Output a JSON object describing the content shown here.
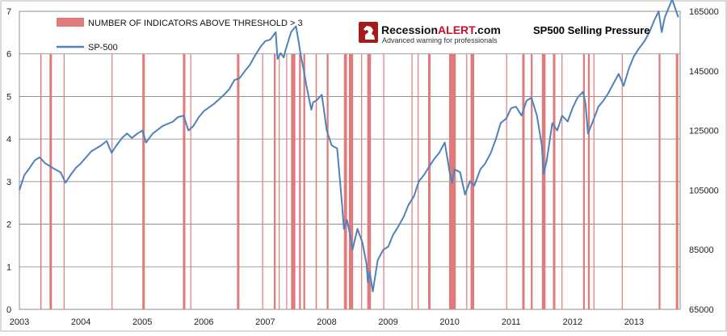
{
  "chart_data": {
    "type": "bar+line",
    "title": "SP500 Selling Pressure",
    "logo": {
      "name_prefix": "Recession",
      "name_accent": "ALERT",
      "name_suffix": ".com",
      "tagline": "Advanced warning for professionals"
    },
    "legend": [
      {
        "name": "NUMBER OF INDICATORS ABOVE THRESHOLD > 3",
        "kind": "bar",
        "color": "#e07b7b"
      },
      {
        "name": "SP-500",
        "kind": "line",
        "color": "#4f81bd"
      }
    ],
    "x_axis": {
      "ticks": [
        "2003",
        "2004",
        "2005",
        "2006",
        "2007",
        "2008",
        "2009",
        "2010",
        "2011",
        "2012",
        "2013"
      ],
      "range": [
        2003.0,
        2013.75
      ]
    },
    "y_left": {
      "ticks": [
        "0",
        "1",
        "2",
        "3",
        "4",
        "5",
        "6",
        "7"
      ],
      "range": [
        0,
        7
      ]
    },
    "y_right": {
      "ticks": [
        "65000",
        "85000",
        "105000",
        "125000",
        "145000",
        "165000"
      ],
      "range": [
        65000,
        165000
      ]
    },
    "grid": true,
    "bar_series": {
      "name": "NUMBER OF INDICATORS ABOVE THRESHOLD > 3",
      "color": "#e07b7b",
      "bars": [
        {
          "start": 2003.34,
          "end": 2003.36,
          "value": 6
        },
        {
          "start": 2003.49,
          "end": 2003.53,
          "value": 6
        },
        {
          "start": 2003.72,
          "end": 2003.73,
          "value": 6
        },
        {
          "start": 2004.5,
          "end": 2004.51,
          "value": 6
        },
        {
          "start": 2005.0,
          "end": 2005.04,
          "value": 6
        },
        {
          "start": 2005.66,
          "end": 2005.7,
          "value": 6
        },
        {
          "start": 2005.78,
          "end": 2005.79,
          "value": 6
        },
        {
          "start": 2006.54,
          "end": 2006.58,
          "value": 6
        },
        {
          "start": 2006.95,
          "end": 2006.96,
          "value": 6
        },
        {
          "start": 2007.14,
          "end": 2007.17,
          "value": 6
        },
        {
          "start": 2007.22,
          "end": 2007.23,
          "value": 6
        },
        {
          "start": 2007.34,
          "end": 2007.35,
          "value": 6
        },
        {
          "start": 2007.42,
          "end": 2007.49,
          "value": 6
        },
        {
          "start": 2007.55,
          "end": 2007.58,
          "value": 6
        },
        {
          "start": 2007.62,
          "end": 2007.65,
          "value": 6
        },
        {
          "start": 2007.82,
          "end": 2007.84,
          "value": 6
        },
        {
          "start": 2008.0,
          "end": 2008.03,
          "value": 6
        },
        {
          "start": 2008.28,
          "end": 2008.33,
          "value": 6
        },
        {
          "start": 2008.36,
          "end": 2008.43,
          "value": 6
        },
        {
          "start": 2008.56,
          "end": 2008.57,
          "value": 6
        },
        {
          "start": 2008.66,
          "end": 2008.72,
          "value": 6
        },
        {
          "start": 2008.92,
          "end": 2008.93,
          "value": 6
        },
        {
          "start": 2009.38,
          "end": 2009.39,
          "value": 6
        },
        {
          "start": 2009.48,
          "end": 2009.49,
          "value": 6
        },
        {
          "start": 2009.65,
          "end": 2009.69,
          "value": 6
        },
        {
          "start": 2009.99,
          "end": 2010.1,
          "value": 6
        },
        {
          "start": 2010.27,
          "end": 2010.28,
          "value": 6
        },
        {
          "start": 2010.34,
          "end": 2010.4,
          "value": 6
        },
        {
          "start": 2010.92,
          "end": 2010.93,
          "value": 6
        },
        {
          "start": 2011.18,
          "end": 2011.22,
          "value": 6
        },
        {
          "start": 2011.32,
          "end": 2011.35,
          "value": 6
        },
        {
          "start": 2011.5,
          "end": 2011.56,
          "value": 6
        },
        {
          "start": 2011.68,
          "end": 2011.72,
          "value": 6
        },
        {
          "start": 2011.82,
          "end": 2011.83,
          "value": 6
        },
        {
          "start": 2012.17,
          "end": 2012.2,
          "value": 6
        },
        {
          "start": 2012.25,
          "end": 2012.28,
          "value": 6
        },
        {
          "start": 2012.34,
          "end": 2012.35,
          "value": 6
        },
        {
          "start": 2012.8,
          "end": 2012.81,
          "value": 6
        },
        {
          "start": 2013.4,
          "end": 2013.43,
          "value": 6
        },
        {
          "start": 2013.68,
          "end": 2013.72,
          "value": 6
        }
      ]
    },
    "line_series": {
      "name": "SP-500",
      "color": "#4f81bd",
      "points": [
        [
          2003.0,
          105000
        ],
        [
          2003.08,
          110000
        ],
        [
          2003.17,
          112500
        ],
        [
          2003.25,
          115000
        ],
        [
          2003.33,
          116000
        ],
        [
          2003.42,
          114000
        ],
        [
          2003.5,
          113000
        ],
        [
          2003.58,
          112000
        ],
        [
          2003.67,
          111000
        ],
        [
          2003.75,
          107500
        ],
        [
          2003.83,
          110000
        ],
        [
          2003.92,
          112500
        ],
        [
          2004.0,
          114000
        ],
        [
          2004.17,
          118000
        ],
        [
          2004.33,
          120000
        ],
        [
          2004.42,
          121500
        ],
        [
          2004.5,
          117500
        ],
        [
          2004.58,
          120000
        ],
        [
          2004.67,
          122500
        ],
        [
          2004.75,
          124000
        ],
        [
          2004.83,
          122500
        ],
        [
          2004.92,
          124000
        ],
        [
          2005.0,
          125000
        ],
        [
          2005.06,
          121000
        ],
        [
          2005.17,
          124000
        ],
        [
          2005.33,
          126500
        ],
        [
          2005.5,
          128000
        ],
        [
          2005.58,
          129500
        ],
        [
          2005.67,
          130000
        ],
        [
          2005.75,
          125000
        ],
        [
          2005.83,
          126500
        ],
        [
          2005.92,
          129500
        ],
        [
          2006.0,
          131500
        ],
        [
          2006.17,
          134000
        ],
        [
          2006.33,
          137000
        ],
        [
          2006.42,
          139000
        ],
        [
          2006.5,
          142000
        ],
        [
          2006.58,
          142500
        ],
        [
          2006.67,
          145000
        ],
        [
          2006.75,
          147000
        ],
        [
          2006.83,
          150000
        ],
        [
          2006.92,
          153000
        ],
        [
          2007.0,
          155000
        ],
        [
          2007.08,
          155500
        ],
        [
          2007.17,
          158000
        ],
        [
          2007.2,
          149000
        ],
        [
          2007.25,
          151000
        ],
        [
          2007.3,
          149500
        ],
        [
          2007.33,
          152000
        ],
        [
          2007.42,
          158000
        ],
        [
          2007.5,
          160000
        ],
        [
          2007.55,
          154000
        ],
        [
          2007.58,
          150000
        ],
        [
          2007.62,
          146000
        ],
        [
          2007.67,
          140000
        ],
        [
          2007.7,
          137000
        ],
        [
          2007.75,
          132000
        ],
        [
          2007.78,
          134500
        ],
        [
          2007.83,
          135000
        ],
        [
          2007.92,
          137000
        ],
        [
          2008.0,
          125000
        ],
        [
          2008.08,
          120000
        ],
        [
          2008.17,
          119000
        ],
        [
          2008.25,
          100000
        ],
        [
          2008.28,
          92000
        ],
        [
          2008.33,
          95000
        ],
        [
          2008.38,
          90000
        ],
        [
          2008.42,
          85000
        ],
        [
          2008.5,
          92000
        ],
        [
          2008.58,
          87500
        ],
        [
          2008.65,
          80000
        ],
        [
          2008.67,
          74000
        ],
        [
          2008.7,
          77500
        ],
        [
          2008.75,
          71000
        ],
        [
          2008.83,
          81500
        ],
        [
          2008.92,
          85000
        ],
        [
          2009.0,
          86000
        ],
        [
          2009.08,
          90000
        ],
        [
          2009.17,
          93000
        ],
        [
          2009.25,
          96000
        ],
        [
          2009.33,
          100000
        ],
        [
          2009.42,
          103000
        ],
        [
          2009.5,
          108000
        ],
        [
          2009.58,
          110000
        ],
        [
          2009.67,
          113000
        ],
        [
          2009.75,
          115500
        ],
        [
          2009.83,
          117500
        ],
        [
          2009.92,
          121000
        ],
        [
          2010.0,
          111000
        ],
        [
          2010.04,
          107500
        ],
        [
          2010.08,
          112000
        ],
        [
          2010.17,
          111000
        ],
        [
          2010.25,
          103500
        ],
        [
          2010.33,
          108000
        ],
        [
          2010.4,
          106500
        ],
        [
          2010.5,
          112000
        ],
        [
          2010.58,
          114000
        ],
        [
          2010.67,
          117500
        ],
        [
          2010.75,
          122000
        ],
        [
          2010.83,
          127500
        ],
        [
          2010.92,
          129000
        ],
        [
          2011.0,
          132500
        ],
        [
          2011.08,
          133000
        ],
        [
          2011.17,
          130000
        ],
        [
          2011.25,
          135000
        ],
        [
          2011.33,
          136000
        ],
        [
          2011.42,
          130000
        ],
        [
          2011.5,
          120000
        ],
        [
          2011.53,
          110500
        ],
        [
          2011.58,
          115000
        ],
        [
          2011.67,
          127500
        ],
        [
          2011.75,
          125000
        ],
        [
          2011.83,
          130000
        ],
        [
          2011.92,
          128000
        ],
        [
          2012.0,
          132500
        ],
        [
          2012.08,
          136000
        ],
        [
          2012.17,
          138000
        ],
        [
          2012.21,
          134000
        ],
        [
          2012.25,
          124000
        ],
        [
          2012.33,
          128000
        ],
        [
          2012.42,
          133000
        ],
        [
          2012.5,
          135000
        ],
        [
          2012.58,
          137500
        ],
        [
          2012.67,
          141000
        ],
        [
          2012.75,
          144000
        ],
        [
          2012.83,
          140000
        ],
        [
          2012.92,
          146000
        ],
        [
          2013.0,
          150000
        ],
        [
          2013.08,
          152500
        ],
        [
          2013.17,
          155000
        ],
        [
          2013.25,
          158000
        ],
        [
          2013.33,
          162000
        ],
        [
          2013.4,
          165000
        ],
        [
          2013.45,
          158000
        ],
        [
          2013.5,
          163000
        ],
        [
          2013.58,
          167000
        ],
        [
          2013.62,
          169000
        ],
        [
          2013.67,
          166000
        ],
        [
          2013.72,
          163000
        ]
      ]
    }
  }
}
